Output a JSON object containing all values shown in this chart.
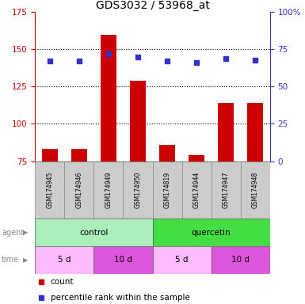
{
  "title": "GDS3032 / 53968_at",
  "samples": [
    "GSM174945",
    "GSM174946",
    "GSM174949",
    "GSM174950",
    "GSM174819",
    "GSM174944",
    "GSM174947",
    "GSM174948"
  ],
  "counts": [
    83,
    83,
    160,
    129,
    86,
    79,
    114,
    114
  ],
  "percentile_ranks": [
    67,
    67,
    72,
    70,
    67,
    66,
    69,
    68
  ],
  "ylim_left": [
    75,
    175
  ],
  "ylim_right": [
    0,
    100
  ],
  "yticks_left": [
    75,
    100,
    125,
    150,
    175
  ],
  "yticks_right": [
    0,
    25,
    50,
    75,
    100
  ],
  "bar_color": "#cc0000",
  "dot_color": "#3333cc",
  "agent_groups": [
    {
      "label": "control",
      "start": 0,
      "end": 4,
      "color": "#aaeebb"
    },
    {
      "label": "quercetin",
      "start": 4,
      "end": 8,
      "color": "#44dd44"
    }
  ],
  "time_groups": [
    {
      "label": "5 d",
      "start": 0,
      "end": 2,
      "color": "#ffbbff"
    },
    {
      "label": "10 d",
      "start": 2,
      "end": 4,
      "color": "#dd55dd"
    },
    {
      "label": "5 d",
      "start": 4,
      "end": 6,
      "color": "#ffbbff"
    },
    {
      "label": "10 d",
      "start": 6,
      "end": 8,
      "color": "#dd55dd"
    }
  ],
  "bg_color": "#ffffff",
  "tick_label_color_left": "#cc0000",
  "tick_label_color_right": "#3333cc",
  "sample_bg_color": "#cccccc",
  "gridline_ticks": [
    100,
    125,
    150
  ],
  "bar_width": 0.55
}
